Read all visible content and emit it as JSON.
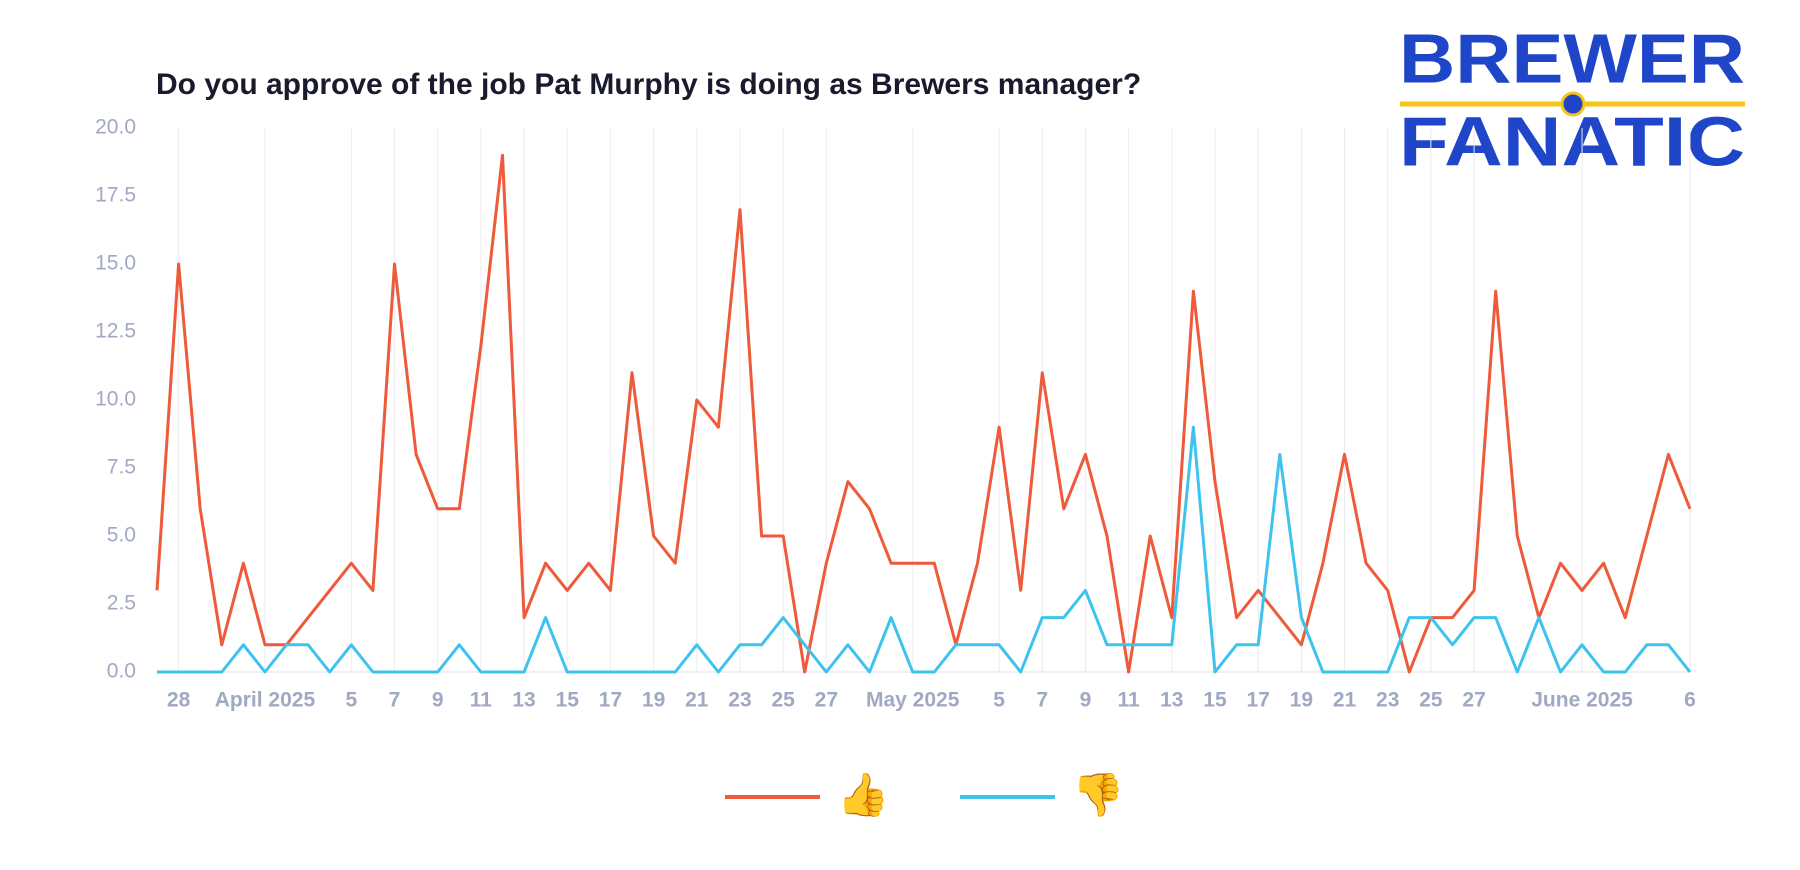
{
  "chart_data": {
    "type": "line",
    "title": "Do you approve of the job Pat Murphy is doing as Brewers manager?",
    "x": [
      "2025-03-27",
      "2025-03-28",
      "2025-03-29",
      "2025-03-30",
      "2025-03-31",
      "2025-04-01",
      "2025-04-02",
      "2025-04-03",
      "2025-04-04",
      "2025-04-05",
      "2025-04-06",
      "2025-04-07",
      "2025-04-08",
      "2025-04-09",
      "2025-04-10",
      "2025-04-11",
      "2025-04-12",
      "2025-04-13",
      "2025-04-14",
      "2025-04-15",
      "2025-04-16",
      "2025-04-17",
      "2025-04-18",
      "2025-04-19",
      "2025-04-20",
      "2025-04-21",
      "2025-04-22",
      "2025-04-23",
      "2025-04-24",
      "2025-04-25",
      "2025-04-26",
      "2025-04-27",
      "2025-04-28",
      "2025-04-29",
      "2025-04-30",
      "2025-05-01",
      "2025-05-02",
      "2025-05-03",
      "2025-05-04",
      "2025-05-05",
      "2025-05-06",
      "2025-05-07",
      "2025-05-08",
      "2025-05-09",
      "2025-05-10",
      "2025-05-11",
      "2025-05-12",
      "2025-05-13",
      "2025-05-14",
      "2025-05-15",
      "2025-05-16",
      "2025-05-17",
      "2025-05-18",
      "2025-05-19",
      "2025-05-20",
      "2025-05-21",
      "2025-05-22",
      "2025-05-23",
      "2025-05-24",
      "2025-05-25",
      "2025-05-26",
      "2025-05-27",
      "2025-05-28",
      "2025-05-29",
      "2025-05-30",
      "2025-05-31",
      "2025-06-01",
      "2025-06-02",
      "2025-06-03",
      "2025-06-04",
      "2025-06-05",
      "2025-06-06"
    ],
    "series": [
      {
        "name": "👍",
        "color": "#ee5a3a",
        "values": [
          3,
          15,
          6,
          1,
          4,
          1,
          1,
          2,
          3,
          4,
          3,
          15,
          8,
          6,
          6,
          12,
          19,
          2,
          4,
          3,
          4,
          3,
          11,
          5,
          4,
          10,
          9,
          17,
          5,
          5,
          0,
          4,
          7,
          6,
          4,
          4,
          4,
          1,
          4,
          9,
          3,
          11,
          6,
          8,
          5,
          0,
          5,
          2,
          14,
          7,
          2,
          3,
          2,
          1,
          4,
          8,
          4,
          3,
          0,
          2,
          2,
          3,
          14,
          5,
          2,
          4,
          3,
          4,
          2,
          5,
          8,
          6
        ]
      },
      {
        "name": "👎",
        "color": "#3ec2ee",
        "values": [
          0,
          0,
          0,
          0,
          1,
          0,
          1,
          1,
          0,
          1,
          0,
          0,
          0,
          0,
          1,
          0,
          0,
          0,
          2,
          0,
          0,
          0,
          0,
          0,
          0,
          1,
          0,
          1,
          1,
          2,
          1,
          0,
          1,
          0,
          2,
          0,
          0,
          1,
          1,
          1,
          0,
          2,
          2,
          3,
          1,
          1,
          1,
          1,
          9,
          0,
          1,
          1,
          8,
          2,
          0,
          0,
          0,
          0,
          2,
          2,
          1,
          2,
          2,
          0,
          2,
          0,
          1,
          0,
          0,
          1,
          1,
          0
        ]
      }
    ],
    "xlim": [
      "2025-03-27",
      "2025-06-06"
    ],
    "xticks": [
      {
        "value": "2025-03-28",
        "label": "28"
      },
      {
        "value": "2025-04-01",
        "label": "April 2025"
      },
      {
        "value": "2025-04-05",
        "label": "5"
      },
      {
        "value": "2025-04-07",
        "label": "7"
      },
      {
        "value": "2025-04-09",
        "label": "9"
      },
      {
        "value": "2025-04-11",
        "label": "11"
      },
      {
        "value": "2025-04-13",
        "label": "13"
      },
      {
        "value": "2025-04-15",
        "label": "15"
      },
      {
        "value": "2025-04-17",
        "label": "17"
      },
      {
        "value": "2025-04-19",
        "label": "19"
      },
      {
        "value": "2025-04-21",
        "label": "21"
      },
      {
        "value": "2025-04-23",
        "label": "23"
      },
      {
        "value": "2025-04-25",
        "label": "25"
      },
      {
        "value": "2025-04-27",
        "label": "27"
      },
      {
        "value": "2025-05-01",
        "label": "May 2025"
      },
      {
        "value": "2025-05-05",
        "label": "5"
      },
      {
        "value": "2025-05-07",
        "label": "7"
      },
      {
        "value": "2025-05-09",
        "label": "9"
      },
      {
        "value": "2025-05-11",
        "label": "11"
      },
      {
        "value": "2025-05-13",
        "label": "13"
      },
      {
        "value": "2025-05-15",
        "label": "15"
      },
      {
        "value": "2025-05-17",
        "label": "17"
      },
      {
        "value": "2025-05-19",
        "label": "19"
      },
      {
        "value": "2025-05-21",
        "label": "21"
      },
      {
        "value": "2025-05-23",
        "label": "23"
      },
      {
        "value": "2025-05-25",
        "label": "25"
      },
      {
        "value": "2025-05-27",
        "label": "27"
      },
      {
        "value": "2025-06-01",
        "label": "June 2025"
      },
      {
        "value": "2025-06-06",
        "label": "6"
      }
    ],
    "ylim": [
      0,
      20
    ],
    "yticks": [
      {
        "value": 0,
        "label": "0.0"
      },
      {
        "value": 2.5,
        "label": "2.5"
      },
      {
        "value": 5,
        "label": "5.0"
      },
      {
        "value": 7.5,
        "label": "7.5"
      },
      {
        "value": 10,
        "label": "10.0"
      },
      {
        "value": 12.5,
        "label": "12.5"
      },
      {
        "value": 15,
        "label": "15.0"
      },
      {
        "value": 17.5,
        "label": "17.5"
      },
      {
        "value": 20,
        "label": "20.0"
      }
    ],
    "grid": true
  },
  "logo": {
    "line1": "BREWER",
    "line2": "FANATIC"
  }
}
